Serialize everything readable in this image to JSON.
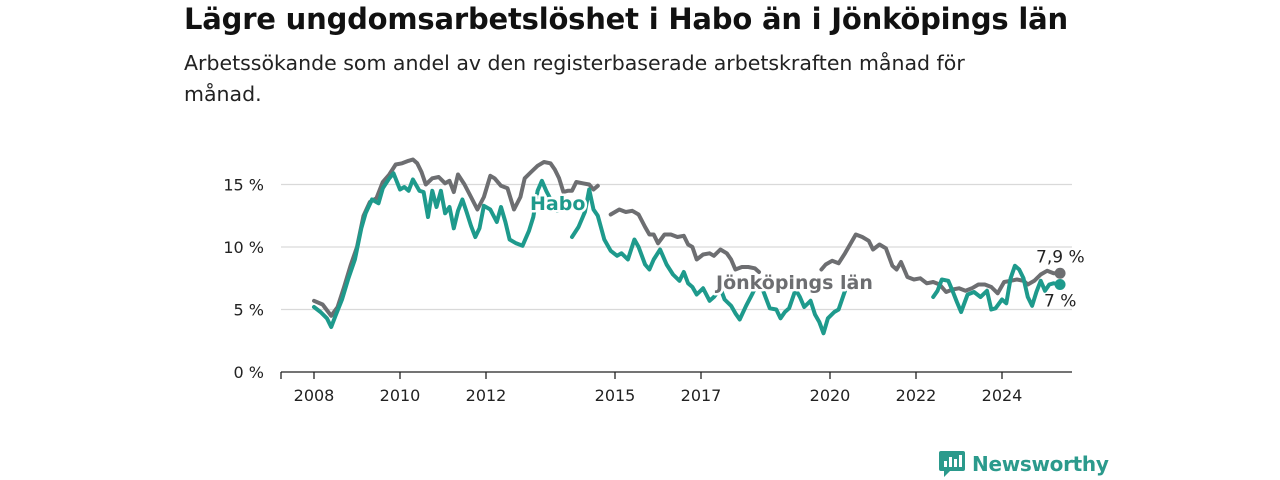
{
  "chart_data": {
    "type": "line",
    "title": "Lägre ungdomsarbetslöshet i Habo än i Jönköpings län",
    "subtitle": "Arbetssökande som andel av den registerbaserade arbetskraften månad för månad.",
    "ylim": [
      0,
      17
    ],
    "yticks": [
      {
        "value": 0,
        "label": "0 %"
      },
      {
        "value": 5,
        "label": "5 %"
      },
      {
        "value": 10,
        "label": "10 %"
      },
      {
        "value": 15,
        "label": "15 %"
      }
    ],
    "xlim": [
      2007.5,
      2025.75
    ],
    "xticks": [
      {
        "value": 2008,
        "label": "2008"
      },
      {
        "value": 2010,
        "label": "2010"
      },
      {
        "value": 2012,
        "label": "2012"
      },
      {
        "value": 2015,
        "label": "2015"
      },
      {
        "value": 2017,
        "label": "2017"
      },
      {
        "value": 2020,
        "label": "2020"
      },
      {
        "value": 2022,
        "label": "2022"
      },
      {
        "value": 2024,
        "label": "2024"
      }
    ],
    "grid": true,
    "series": [
      {
        "name": "Jönköpings län",
        "color": "#6d6e71",
        "end_label": "7,9 %",
        "points": [
          [
            2008.0,
            5.7
          ],
          [
            2008.2,
            5.4
          ],
          [
            2008.4,
            4.5
          ],
          [
            2008.55,
            5.2
          ],
          [
            2008.7,
            6.8
          ],
          [
            2008.85,
            8.5
          ],
          [
            2009.0,
            10.0
          ],
          [
            2009.15,
            12.5
          ],
          [
            2009.3,
            13.6
          ],
          [
            2009.45,
            13.9
          ],
          [
            2009.6,
            15.2
          ],
          [
            2009.75,
            15.8
          ],
          [
            2009.9,
            16.6
          ],
          [
            2010.05,
            16.7
          ],
          [
            2010.2,
            16.9
          ],
          [
            2010.3,
            17.0
          ],
          [
            2010.4,
            16.7
          ],
          [
            2010.5,
            16.0
          ],
          [
            2010.6,
            15.0
          ],
          [
            2010.75,
            15.5
          ],
          [
            2010.9,
            15.6
          ],
          [
            2011.05,
            15.1
          ],
          [
            2011.15,
            15.3
          ],
          [
            2011.25,
            14.4
          ],
          [
            2011.35,
            15.8
          ],
          [
            2011.5,
            15.0
          ],
          [
            2011.65,
            14.0
          ],
          [
            2011.8,
            13.0
          ],
          [
            2011.95,
            14.0
          ],
          [
            2012.1,
            15.7
          ],
          [
            2012.2,
            15.5
          ],
          [
            2012.35,
            14.9
          ],
          [
            2012.5,
            14.7
          ],
          [
            2012.65,
            13.0
          ],
          [
            2012.8,
            14.0
          ],
          [
            2012.9,
            15.5
          ],
          [
            2013.05,
            16.0
          ],
          [
            2013.2,
            16.5
          ],
          [
            2013.35,
            16.8
          ],
          [
            2013.5,
            16.7
          ],
          [
            2013.6,
            16.2
          ],
          [
            2013.7,
            15.5
          ],
          [
            2013.8,
            14.4
          ],
          [
            2013.9,
            14.5
          ],
          [
            2014.0,
            14.5
          ],
          [
            2014.1,
            15.2
          ],
          [
            2014.25,
            15.1
          ],
          [
            2014.4,
            15.0
          ],
          [
            2014.5,
            14.6
          ],
          [
            2014.6,
            14.9
          ]
        ],
        "points_2": [
          [
            2014.9,
            12.6
          ],
          [
            2015.1,
            13.0
          ],
          [
            2015.25,
            12.8
          ],
          [
            2015.4,
            12.9
          ],
          [
            2015.55,
            12.6
          ],
          [
            2015.7,
            11.6
          ],
          [
            2015.8,
            11.0
          ],
          [
            2015.9,
            11.0
          ],
          [
            2016.0,
            10.3
          ],
          [
            2016.15,
            11.0
          ],
          [
            2016.3,
            11.0
          ],
          [
            2016.45,
            10.8
          ],
          [
            2016.6,
            10.9
          ],
          [
            2016.7,
            10.2
          ],
          [
            2016.8,
            10.0
          ],
          [
            2016.9,
            9.0
          ],
          [
            2017.05,
            9.4
          ],
          [
            2017.2,
            9.5
          ],
          [
            2017.3,
            9.3
          ],
          [
            2017.45,
            9.8
          ],
          [
            2017.6,
            9.5
          ],
          [
            2017.7,
            9.0
          ],
          [
            2017.8,
            8.2
          ],
          [
            2017.95,
            8.4
          ],
          [
            2018.1,
            8.4
          ],
          [
            2018.25,
            8.3
          ],
          [
            2018.35,
            8.0
          ]
        ],
        "points_3": [
          [
            2019.8,
            8.2
          ],
          [
            2019.9,
            8.6
          ],
          [
            2020.05,
            8.9
          ],
          [
            2020.2,
            8.7
          ],
          [
            2020.35,
            9.5
          ],
          [
            2020.5,
            10.4
          ],
          [
            2020.6,
            11.0
          ],
          [
            2020.75,
            10.8
          ],
          [
            2020.9,
            10.5
          ],
          [
            2021.0,
            9.8
          ],
          [
            2021.15,
            10.2
          ],
          [
            2021.3,
            9.9
          ],
          [
            2021.45,
            8.5
          ],
          [
            2021.55,
            8.2
          ],
          [
            2021.65,
            8.8
          ],
          [
            2021.8,
            7.6
          ],
          [
            2021.95,
            7.4
          ],
          [
            2022.1,
            7.5
          ],
          [
            2022.25,
            7.1
          ],
          [
            2022.4,
            7.2
          ],
          [
            2022.55,
            7.0
          ],
          [
            2022.7,
            6.4
          ],
          [
            2022.85,
            6.6
          ],
          [
            2023.0,
            6.7
          ],
          [
            2023.15,
            6.5
          ],
          [
            2023.3,
            6.7
          ],
          [
            2023.45,
            7.0
          ],
          [
            2023.6,
            7.0
          ],
          [
            2023.75,
            6.8
          ],
          [
            2023.9,
            6.3
          ],
          [
            2024.05,
            7.2
          ],
          [
            2024.2,
            7.3
          ],
          [
            2024.35,
            7.4
          ],
          [
            2024.5,
            7.3
          ],
          [
            2024.6,
            7.0
          ],
          [
            2024.75,
            7.3
          ],
          [
            2024.9,
            7.8
          ],
          [
            2025.05,
            8.1
          ],
          [
            2025.2,
            7.9
          ],
          [
            2025.35,
            7.9
          ]
        ]
      },
      {
        "name": "Habo",
        "color": "#1e9a8c",
        "end_label": "7 %",
        "points": [
          [
            2008.0,
            5.2
          ],
          [
            2008.15,
            4.8
          ],
          [
            2008.3,
            4.3
          ],
          [
            2008.4,
            3.6
          ],
          [
            2008.5,
            4.5
          ],
          [
            2008.65,
            5.8
          ],
          [
            2008.8,
            7.5
          ],
          [
            2008.95,
            9.0
          ],
          [
            2009.1,
            11.5
          ],
          [
            2009.2,
            12.7
          ],
          [
            2009.35,
            13.8
          ],
          [
            2009.5,
            13.5
          ],
          [
            2009.6,
            14.7
          ],
          [
            2009.75,
            15.5
          ],
          [
            2009.85,
            15.9
          ],
          [
            2010.0,
            14.6
          ],
          [
            2010.1,
            14.8
          ],
          [
            2010.2,
            14.5
          ],
          [
            2010.3,
            15.4
          ],
          [
            2010.45,
            14.5
          ],
          [
            2010.55,
            14.4
          ],
          [
            2010.65,
            12.4
          ],
          [
            2010.75,
            14.5
          ],
          [
            2010.85,
            13.2
          ],
          [
            2010.95,
            14.5
          ],
          [
            2011.05,
            12.7
          ],
          [
            2011.15,
            13.2
          ],
          [
            2011.25,
            11.5
          ],
          [
            2011.35,
            12.9
          ],
          [
            2011.45,
            13.8
          ],
          [
            2011.55,
            12.8
          ],
          [
            2011.65,
            11.7
          ],
          [
            2011.75,
            10.8
          ],
          [
            2011.85,
            11.5
          ],
          [
            2011.95,
            13.3
          ],
          [
            2012.1,
            13.0
          ],
          [
            2012.25,
            12.0
          ],
          [
            2012.35,
            13.2
          ],
          [
            2012.45,
            12.0
          ],
          [
            2012.55,
            10.6
          ],
          [
            2012.7,
            10.3
          ],
          [
            2012.85,
            10.1
          ],
          [
            2013.0,
            11.3
          ],
          [
            2013.1,
            12.4
          ],
          [
            2013.2,
            14.5
          ],
          [
            2013.3,
            15.3
          ],
          [
            2013.4,
            14.5
          ],
          [
            2013.55,
            13.5
          ],
          [
            2013.65,
            12.9
          ]
        ],
        "points_2": [
          [
            2014.0,
            10.8
          ],
          [
            2014.15,
            11.6
          ],
          [
            2014.3,
            12.8
          ],
          [
            2014.4,
            14.6
          ],
          [
            2014.5,
            13.0
          ],
          [
            2014.6,
            12.5
          ],
          [
            2014.75,
            10.6
          ],
          [
            2014.9,
            9.7
          ],
          [
            2015.05,
            9.3
          ],
          [
            2015.15,
            9.5
          ],
          [
            2015.3,
            9.0
          ],
          [
            2015.45,
            10.6
          ],
          [
            2015.55,
            10.0
          ],
          [
            2015.7,
            8.6
          ],
          [
            2015.8,
            8.2
          ],
          [
            2015.9,
            9.0
          ],
          [
            2016.05,
            9.8
          ],
          [
            2016.2,
            8.6
          ],
          [
            2016.35,
            7.8
          ],
          [
            2016.5,
            7.3
          ],
          [
            2016.6,
            8.0
          ],
          [
            2016.7,
            7.1
          ],
          [
            2016.8,
            6.8
          ],
          [
            2016.9,
            6.2
          ],
          [
            2017.05,
            6.7
          ],
          [
            2017.2,
            5.7
          ],
          [
            2017.3,
            6.0
          ],
          [
            2017.45,
            6.7
          ],
          [
            2017.55,
            5.8
          ],
          [
            2017.7,
            5.3
          ],
          [
            2017.8,
            4.7
          ],
          [
            2017.9,
            4.2
          ],
          [
            2018.05,
            5.3
          ],
          [
            2018.2,
            6.3
          ],
          [
            2018.35,
            7.4
          ],
          [
            2018.5,
            6.0
          ],
          [
            2018.6,
            5.1
          ],
          [
            2018.75,
            5.0
          ],
          [
            2018.85,
            4.3
          ],
          [
            2018.95,
            4.8
          ],
          [
            2019.05,
            5.1
          ],
          [
            2019.2,
            6.6
          ],
          [
            2019.3,
            6.0
          ],
          [
            2019.4,
            5.2
          ],
          [
            2019.55,
            5.7
          ],
          [
            2019.65,
            4.6
          ],
          [
            2019.75,
            4.0
          ],
          [
            2019.85,
            3.1
          ],
          [
            2019.95,
            4.3
          ],
          [
            2020.1,
            4.8
          ],
          [
            2020.2,
            5.0
          ],
          [
            2020.35,
            6.5
          ]
        ],
        "points_3": [
          [
            2022.4,
            6.0
          ],
          [
            2022.5,
            6.5
          ],
          [
            2022.6,
            7.4
          ],
          [
            2022.75,
            7.3
          ],
          [
            2022.85,
            6.5
          ],
          [
            2022.95,
            5.6
          ],
          [
            2023.05,
            4.8
          ],
          [
            2023.2,
            6.2
          ],
          [
            2023.35,
            6.4
          ],
          [
            2023.5,
            6.0
          ],
          [
            2023.65,
            6.5
          ],
          [
            2023.75,
            5.0
          ],
          [
            2023.85,
            5.1
          ],
          [
            2024.0,
            5.8
          ],
          [
            2024.1,
            5.5
          ],
          [
            2024.2,
            7.5
          ],
          [
            2024.3,
            8.5
          ],
          [
            2024.4,
            8.2
          ],
          [
            2024.5,
            7.5
          ],
          [
            2024.6,
            6.0
          ],
          [
            2024.7,
            5.3
          ],
          [
            2024.8,
            6.4
          ],
          [
            2024.9,
            7.3
          ],
          [
            2025.0,
            6.5
          ],
          [
            2025.1,
            7.0
          ],
          [
            2025.2,
            7.1
          ],
          [
            2025.35,
            7.0
          ]
        ]
      }
    ],
    "annotations": [
      {
        "text": "Habo",
        "series": "Habo"
      },
      {
        "text": "Jönköpings län",
        "series": "Jönköpings län"
      }
    ]
  },
  "brand": {
    "name": "Newsworthy",
    "icon": "newsworthy-logo-icon"
  }
}
